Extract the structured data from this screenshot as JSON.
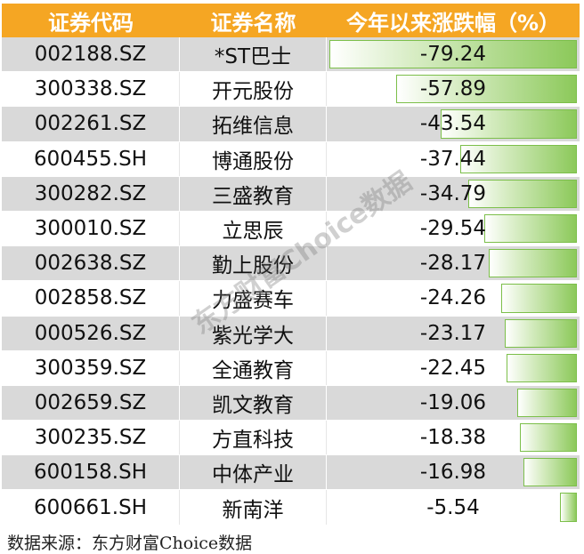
{
  "table": {
    "headers": {
      "code": "证券代码",
      "name": "证券名称",
      "change": "今年以来涨跌幅（%）"
    },
    "bar_max_abs": 79.24,
    "rows": [
      {
        "code": "002188.SZ",
        "name": "*ST巴士",
        "change": "-79.24",
        "value": -79.24
      },
      {
        "code": "300338.SZ",
        "name": "开元股份",
        "change": "-57.89",
        "value": -57.89
      },
      {
        "code": "002261.SZ",
        "name": "拓维信息",
        "change": "-43.54",
        "value": -43.54
      },
      {
        "code": "600455.SH",
        "name": "博通股份",
        "change": "-37.44",
        "value": -37.44
      },
      {
        "code": "300282.SZ",
        "name": "三盛教育",
        "change": "-34.79",
        "value": -34.79
      },
      {
        "code": "300010.SZ",
        "name": "立思辰",
        "change": "-29.54",
        "value": -29.54
      },
      {
        "code": "002638.SZ",
        "name": "勤上股份",
        "change": "-28.17",
        "value": -28.17
      },
      {
        "code": "002858.SZ",
        "name": "力盛赛车",
        "change": "-24.26",
        "value": -24.26
      },
      {
        "code": "000526.SZ",
        "name": "紫光学大",
        "change": "-23.17",
        "value": -23.17
      },
      {
        "code": "300359.SZ",
        "name": "全通教育",
        "change": "-22.45",
        "value": -22.45
      },
      {
        "code": "002659.SZ",
        "name": "凯文教育",
        "change": "-19.06",
        "value": -19.06
      },
      {
        "code": "300235.SZ",
        "name": "方直科技",
        "change": "-18.38",
        "value": -18.38
      },
      {
        "code": "600158.SH",
        "name": "中体产业",
        "change": "-16.98",
        "value": -16.98
      },
      {
        "code": "600661.SH",
        "name": "新南洋",
        "change": "-5.54",
        "value": -5.54
      }
    ]
  },
  "colors": {
    "header_bg": "#f5a623",
    "stripe": "#d9d9d9",
    "bar": "#8cc95a"
  },
  "watermark": "东方财富Choice数据",
  "source": "数据来源：东方财富Choice数据"
}
